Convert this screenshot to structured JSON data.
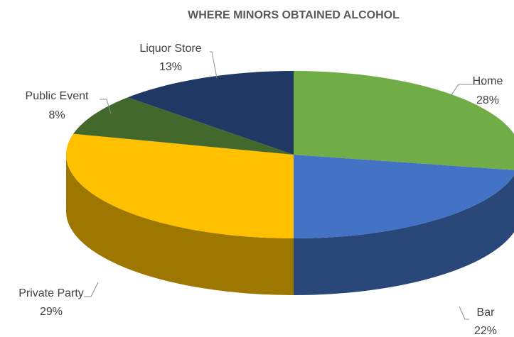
{
  "chart_data": {
    "type": "pie",
    "title": "WHERE MINORS OBTAINED ALCOHOL",
    "slices": [
      {
        "label": "Home",
        "value": 28,
        "value_label": "28%",
        "color": "#70ad47"
      },
      {
        "label": "Bar",
        "value": 22,
        "value_label": "22%",
        "color": "#4472c4"
      },
      {
        "label": "Private Party",
        "value": 29,
        "value_label": "29%",
        "color": "#ffc000"
      },
      {
        "label": "Public Event",
        "value": 8,
        "value_label": "8%",
        "color": "#43682b"
      },
      {
        "label": "Liquor Store",
        "value": 13,
        "value_label": "13%",
        "color": "#203864"
      }
    ],
    "legend": "none",
    "style": "3d"
  }
}
